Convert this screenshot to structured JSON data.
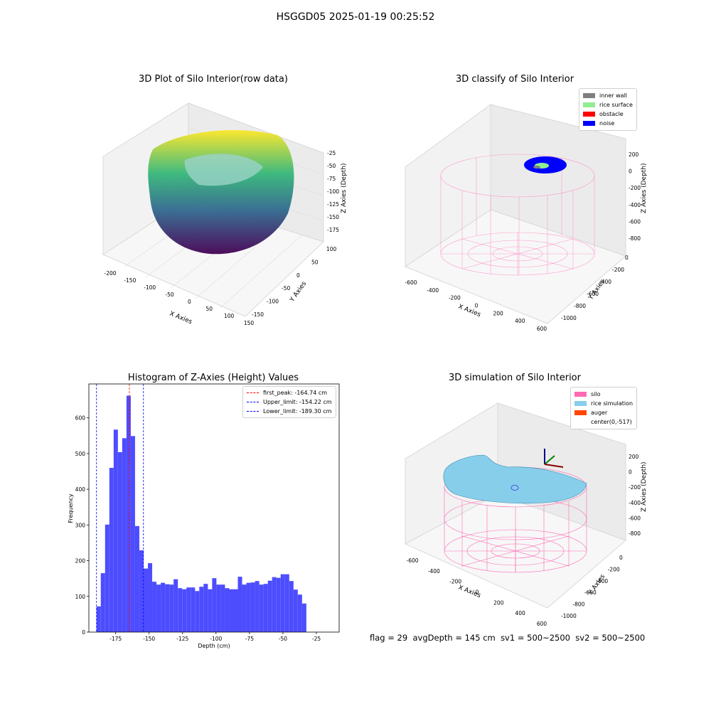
{
  "figure": {
    "suptitle": "HSGGD05 2025-01-19 00:25:52"
  },
  "chart_data": [
    {
      "type": "scatter",
      "title": "3D Plot of Silo Interior(row data)",
      "xlabel": "X Axies",
      "ylabel": "Y Axies",
      "zlabel": "Z Axies (Depth)",
      "xticks": [
        "-200",
        "-150",
        "-100",
        "-50",
        "0",
        "50",
        "100",
        "150"
      ],
      "yticks": [
        "100",
        "50",
        "0",
        "-50",
        "-100",
        "-150"
      ],
      "zticks": [
        "-25",
        "-50",
        "-75",
        "-100",
        "-125",
        "-150",
        "-175"
      ],
      "colormap": "viridis"
    },
    {
      "type": "scatter",
      "title": "3D classify of Silo Interior",
      "xlabel": "X Axies",
      "ylabel": "Y Axies",
      "zlabel": "Z Axies (Depth)",
      "xticks": [
        "-600",
        "-400",
        "-200",
        "0",
        "200",
        "400",
        "600"
      ],
      "yticks": [
        "0",
        "-200",
        "-400",
        "-600",
        "-800",
        "-1000"
      ],
      "zticks": [
        "200",
        "0",
        "-200",
        "-400",
        "-600",
        "-800"
      ],
      "legend": [
        {
          "label": "inner wall",
          "color": "#808080"
        },
        {
          "label": "rice surface",
          "color": "#90ee90"
        },
        {
          "label": "obstacle",
          "color": "#ff0000"
        },
        {
          "label": "noise",
          "color": "#0000ff"
        }
      ],
      "legend_position": "top-right"
    },
    {
      "type": "bar",
      "title": "Histogram of Z-Axies (Height) Values",
      "xlabel": "Depth (cm)",
      "ylabel": "Frequency",
      "xticks": [
        "-175",
        "-150",
        "-125",
        "-100",
        "-75",
        "-50",
        "-25"
      ],
      "yticks": [
        "0",
        "100",
        "200",
        "300",
        "400",
        "500",
        "600"
      ],
      "xlim": [
        -195,
        -8
      ],
      "ylim": [
        0,
        695
      ],
      "bin_width": 3.2,
      "bin_start": -189.3,
      "bar_color": "#4d4dff",
      "values": [
        72,
        165,
        301,
        460,
        567,
        504,
        543,
        662,
        549,
        297,
        229,
        178,
        193,
        141,
        133,
        138,
        134,
        133,
        148,
        123,
        120,
        125,
        125,
        115,
        127,
        135,
        120,
        151,
        133,
        133,
        123,
        120,
        120,
        155,
        133,
        138,
        139,
        143,
        133,
        135,
        144,
        154,
        152,
        162,
        162,
        143,
        119,
        105,
        80
      ],
      "vlines": [
        {
          "label": "first_peak: -164.74 cm",
          "x": -164.74,
          "color": "#ff0000"
        },
        {
          "label": "Upper_limit: -154.22 cm",
          "x": -154.22,
          "color": "#0000ff"
        },
        {
          "label": "Lower_limit: -189.30 cm",
          "x": -189.3,
          "color": "#0000ff"
        }
      ],
      "legend_position": "top-right"
    },
    {
      "type": "scatter",
      "title": "3D simulation of Silo Interior",
      "xlabel": "X Axies",
      "ylabel": "Y Axies",
      "zlabel": "Z Axies (Depth)",
      "xticks": [
        "-600",
        "-400",
        "-200",
        "0",
        "200",
        "400",
        "600"
      ],
      "yticks": [
        "0",
        "-200",
        "-400",
        "-600",
        "-800",
        "-1000"
      ],
      "zticks": [
        "200",
        "0",
        "-200",
        "-400",
        "-600",
        "-800"
      ],
      "legend": [
        {
          "label": "silo",
          "color": "#ff69b4"
        },
        {
          "label": "rice simulation",
          "color": "#87ceeb"
        },
        {
          "label": "auger",
          "color": "#ff4500"
        },
        {
          "label": "center(0,-517)",
          "color": ""
        }
      ],
      "legend_position": "top-right"
    }
  ],
  "status": {
    "flag": "flag = 29",
    "avg_depth": "avgDepth = 145 cm",
    "sv1": "sv1 = 500~2500",
    "sv2": "sv2 = 500~2500"
  }
}
